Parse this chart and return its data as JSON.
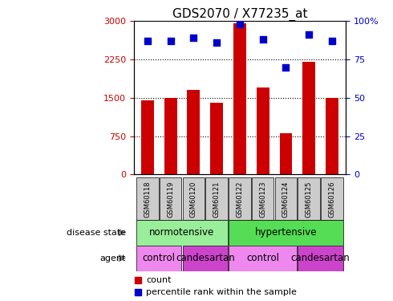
{
  "title": "GDS2070 / X77235_at",
  "samples": [
    "GSM60118",
    "GSM60119",
    "GSM60120",
    "GSM60121",
    "GSM60122",
    "GSM60123",
    "GSM60124",
    "GSM60125",
    "GSM60126"
  ],
  "counts": [
    1450,
    1500,
    1650,
    1400,
    2950,
    1700,
    800,
    2200,
    1500
  ],
  "percentile_ranks": [
    87,
    87,
    89,
    86,
    98,
    88,
    70,
    91,
    87
  ],
  "bar_color": "#cc0000",
  "dot_color": "#0000cc",
  "left_ylim": [
    0,
    3000
  ],
  "right_ylim": [
    0,
    100
  ],
  "left_yticks": [
    0,
    750,
    1500,
    2250,
    3000
  ],
  "right_yticks": [
    0,
    25,
    50,
    75,
    100
  ],
  "right_yticklabels": [
    "0",
    "25",
    "50",
    "75",
    "100%"
  ],
  "grid_values": [
    750,
    1500,
    2250
  ],
  "disease_state_color_norm": "#99ee99",
  "disease_state_color_hyp": "#55dd55",
  "agent_control_color": "#ee88ee",
  "agent_candesartan_color": "#cc44cc",
  "sample_label_bg": "#cccccc",
  "title_fontsize": 11,
  "tick_fontsize": 8,
  "bar_width": 0.55
}
